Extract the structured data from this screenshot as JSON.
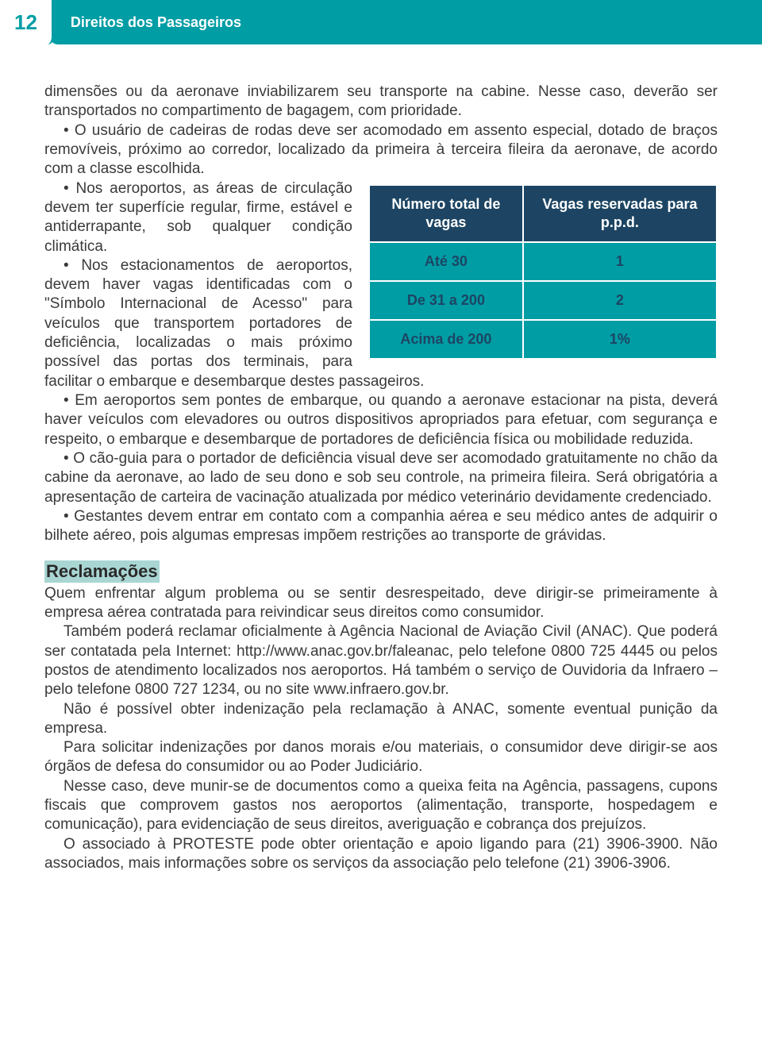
{
  "header": {
    "page_number": "12",
    "title": "Direitos dos Passageiros",
    "bar_color": "#009da5",
    "accent_color": "#009da5",
    "text_color": "#ffffff"
  },
  "body": {
    "text_color": "#3a3a3a",
    "fontsize": 19,
    "p1": "dimensões ou da aeronave inviabilizarem seu transporte na cabine. Nesse caso, deverão ser transportados no compartimento de bagagem, com prioridade.",
    "p2": "• O usuário de cadeiras de rodas deve ser acomodado em assento especial, dotado de braços removíveis, próximo ao corredor, localizado da primeira à terceira fileira da aeronave, de acordo com a classe escolhida.",
    "p3": "• Nos aeroportos, as áreas de circulação devem ter superfície regular, firme, estável e antiderrapante, sob qualquer condição climática.",
    "p4": "• Nos estacionamentos de aeroportos, devem haver vagas identificadas com o \"Símbolo Internacional de Acesso\" para veículos que transportem portadores de deficiência, localizadas o mais próximo possível das portas dos terminais, para facilitar o embarque e desembarque destes passageiros.",
    "p5": "• Em aeroportos sem pontes de embarque, ou quando a aeronave estacionar na pista, deverá haver veículos com elevadores ou outros dispositivos apropriados para efetuar, com segurança e respeito, o embarque e desembarque de portadores de deficiência física ou mobilidade reduzida.",
    "p6": "• O cão-guia para o portador de deficiência visual deve ser acomodado gratuitamente no chão da cabine da aeronave, ao lado de seu dono e sob seu controle, na primeira fileira. Será obrigatória a apresentação de carteira de vacinação atualizada por médico veterinário devidamente credenciado.",
    "p7": "• Gestantes devem entrar em contato com a companhia aérea e seu médico antes de adquirir o bilhete aéreo, pois algumas empresas impõem restrições ao transporte de grávidas."
  },
  "table": {
    "type": "table",
    "header_bg": "#1d4563",
    "header_color": "#ffffff",
    "cell_bg": "#009da5",
    "cell_color": "#1d4563",
    "border_color": "#ffffff",
    "columns": [
      "Número total de vagas",
      "Vagas reservadas para p.p.d."
    ],
    "rows": [
      [
        "Até 30",
        "1"
      ],
      [
        "De 31 a 200",
        "2"
      ],
      [
        "Acima de 200",
        "1%"
      ]
    ]
  },
  "section2": {
    "heading": "Reclamações",
    "heading_bg": "#a9d6d3",
    "p1": "Quem enfrentar algum problema ou se sentir desrespeitado, deve dirigir-se primeiramente à empresa aérea contratada para reivindicar seus direitos como consumidor.",
    "p2": "Também poderá reclamar oficialmente à Agência Nacional de Aviação Civil (ANAC). Que poderá ser contatada pela Internet: http://www.anac.gov.br/faleanac, pelo telefone 0800 725 4445 ou pelos postos de atendimento localizados nos aeroportos. Há também o serviço de Ouvidoria da Infraero – pelo telefone 0800 727 1234, ou no site www.infraero.gov.br.",
    "p3": "Não é possível obter indenização pela reclamação à ANAC, somente eventual punição da empresa.",
    "p4": "Para solicitar indenizações por danos morais e/ou materiais, o consumidor deve dirigir-se aos órgãos de defesa do consumidor ou ao Poder Judiciário.",
    "p5": "Nesse caso, deve munir-se de documentos como a queixa feita na Agência, passagens, cupons fiscais que comprovem gastos nos aeroportos (alimentação, transporte, hospedagem e comunicação), para evidenciação de seus direitos, averiguação e cobrança dos prejuízos.",
    "p6": "O associado à PROTESTE pode obter orientação e apoio ligando para (21) 3906-3900. Não associados, mais informações sobre os serviços da associação pelo telefone (21) 3906-3906."
  }
}
